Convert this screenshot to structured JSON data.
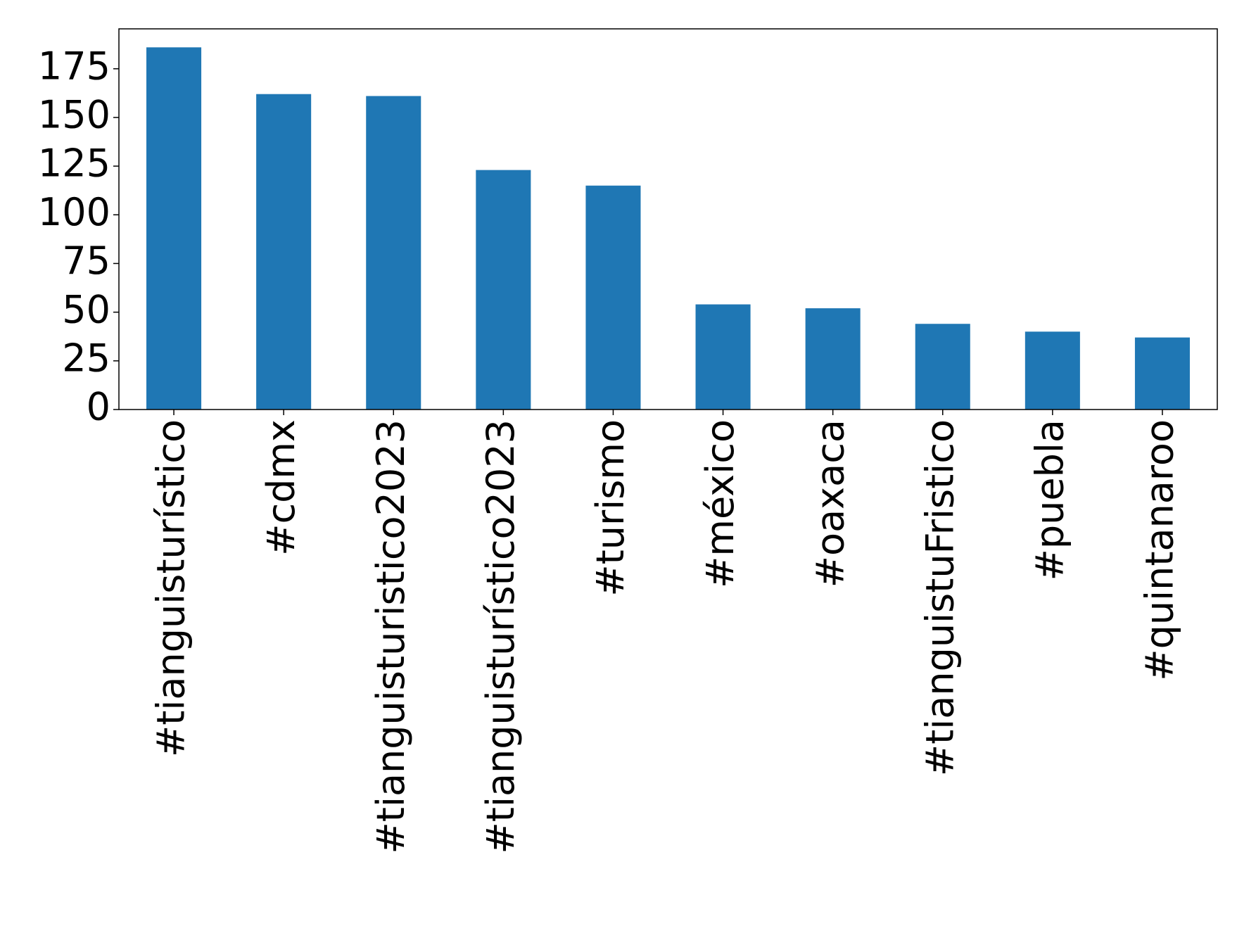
{
  "chart_data": {
    "type": "bar",
    "categories": [
      "#tianguisturístico",
      "#cdmx",
      "#tianguisturistico2023",
      "#tianguisturístico2023",
      "#turismo",
      "#méxico",
      "#oaxaca",
      "#tianguistuFristico",
      "#puebla",
      "#quintanaroo"
    ],
    "values": [
      186,
      162,
      161,
      123,
      115,
      54,
      52,
      44,
      40,
      37
    ],
    "color": "#1f77b4",
    "ylim": [
      0,
      195.5
    ],
    "yticks": [
      0,
      25,
      50,
      75,
      100,
      125,
      150,
      175
    ],
    "grid": false
  }
}
